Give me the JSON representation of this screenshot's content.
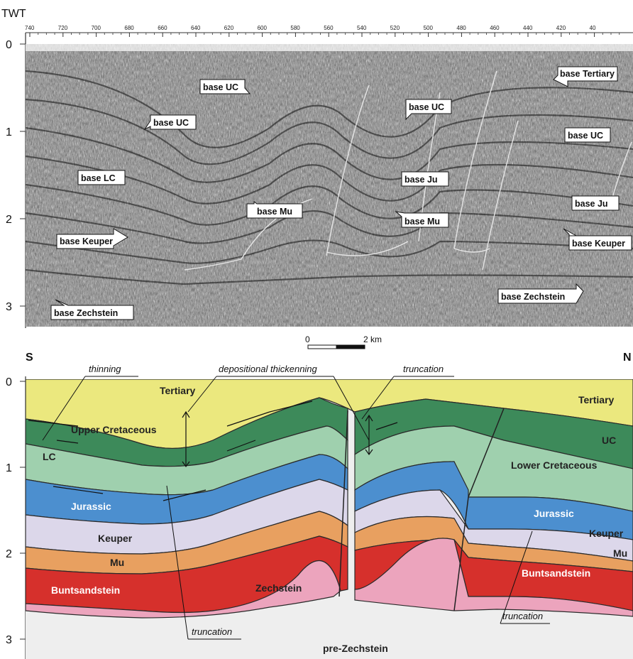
{
  "seismic": {
    "axis_title": "TWT",
    "top_ticks": [
      "740",
      "720",
      "700",
      "680",
      "660",
      "640",
      "620",
      "600",
      "580",
      "560",
      "540",
      "520",
      "500",
      "480",
      "460",
      "440",
      "420",
      "40"
    ],
    "twt_ticks": [
      "0",
      "1",
      "2",
      "3"
    ],
    "labels": [
      {
        "id": "base-tertiary",
        "text": "base Tertiary"
      },
      {
        "id": "base-uc-1",
        "text": "base UC"
      },
      {
        "id": "base-uc-2",
        "text": "base UC"
      },
      {
        "id": "base-uc-3",
        "text": "base UC"
      },
      {
        "id": "base-uc-4",
        "text": "base UC"
      },
      {
        "id": "base-lc",
        "text": "base LC"
      },
      {
        "id": "base-ju-1",
        "text": "base Ju"
      },
      {
        "id": "base-ju-2",
        "text": "base Ju"
      },
      {
        "id": "base-mu-1",
        "text": "base Mu"
      },
      {
        "id": "base-mu-2",
        "text": "base Mu"
      },
      {
        "id": "base-keuper-1",
        "text": "base Keuper"
      },
      {
        "id": "base-keuper-2",
        "text": "base Keuper"
      },
      {
        "id": "base-zechstein-1",
        "text": "base Zechstein"
      },
      {
        "id": "base-zechstein-2",
        "text": "base Zechstein"
      }
    ]
  },
  "scale_bar": {
    "start": "0",
    "end": "2 km"
  },
  "section": {
    "south": "S",
    "north": "N",
    "twt_ticks": [
      "0",
      "1",
      "2",
      "3"
    ],
    "units": {
      "tertiary_left": "Tertiary",
      "tertiary_right": "Tertiary",
      "upper_cretaceous": "Upper Cretaceous",
      "uc": "UC",
      "lc": "LC",
      "lower_cretaceous": "Lower Cretaceous",
      "jurassic_left": "Jurassic",
      "jurassic_right": "Jurassic",
      "keuper_left": "Keuper",
      "keuper_right": "Keuper",
      "mu_left": "Mu",
      "mu_right": "Mu",
      "buntsandstein_left": "Buntsandstein",
      "buntsandstein_right": "Buntsandstein",
      "zechstein": "Zechstein",
      "pre_zechstein": "pre-Zechstein"
    },
    "annotations": {
      "thinning": "thinning",
      "depositional_thickenning": "depositional thickenning",
      "truncation_top": "truncation",
      "truncation_bottom_left": "truncation",
      "truncation_bottom_right": "truncation"
    },
    "colors": {
      "tertiary": "#ebe87e",
      "upper_cretaceous": "#3d8a5a",
      "lower_cretaceous": "#9fd0ae",
      "jurassic": "#4c8fcf",
      "keuper": "#dcd7ea",
      "mu": "#e8a060",
      "buntsandstein": "#d6302c",
      "zechstein": "#eca4bd",
      "pre_zechstein": "#eeeeee"
    }
  }
}
